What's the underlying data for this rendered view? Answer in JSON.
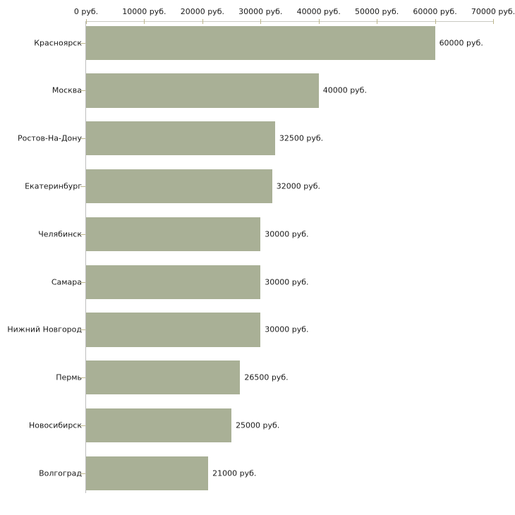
{
  "chart_data": {
    "type": "bar",
    "orientation": "horizontal",
    "title": "",
    "xlabel": "",
    "ylabel": "",
    "categories": [
      "Красноярск",
      "Москва",
      "Ростов-На-Дону",
      "Екатеринбург",
      "Челябинск",
      "Самара",
      "Нижний Новгород",
      "Пермь",
      "Новосибирск",
      "Волгоград"
    ],
    "values": [
      60000,
      40000,
      32500,
      32000,
      30000,
      30000,
      30000,
      26500,
      25000,
      21000
    ],
    "value_labels": [
      "60000 руб.",
      "40000 руб.",
      "32500 руб.",
      "32000 руб.",
      "30000 руб.",
      "30000 руб.",
      "30000 руб.",
      "26500 руб.",
      "25000 руб.",
      "21000 руб."
    ],
    "x_tick_values": [
      0,
      10000,
      20000,
      30000,
      40000,
      50000,
      60000,
      70000
    ],
    "x_tick_labels": [
      "0 руб.",
      "10000 руб.",
      "20000 руб.",
      "30000 руб.",
      "40000 руб.",
      "50000 руб.",
      "60000 руб.",
      "70000 руб."
    ],
    "xlim": [
      0,
      70000
    ],
    "grid": "off",
    "legend": "none",
    "colors": {
      "bar": "#a9b096",
      "h_axis_line": "#c9c9c3",
      "v_axis_line": "#bfbfbf",
      "tick": "#bdb78c",
      "text": "#1a1a1a",
      "background": "#ffffff"
    }
  }
}
